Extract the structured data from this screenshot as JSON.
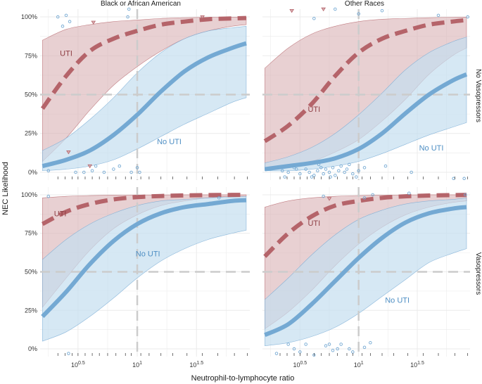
{
  "chart_data": {
    "type": "line",
    "xlabel": "Neutrophil-to-lymphocyte ratio",
    "ylabel": "NEC Likelihood",
    "x_scale": "log10",
    "xlim_log10": [
      0.18,
      1.95
    ],
    "x_ticks": [
      {
        "log10": 0.5,
        "base": "10",
        "exp": "0.5"
      },
      {
        "log10": 1.0,
        "base": "10",
        "exp": "1"
      },
      {
        "log10": 1.5,
        "base": "10",
        "exp": "1.5"
      }
    ],
    "ylim": [
      -0.05,
      1.05
    ],
    "y_ticks": [
      {
        "value": 0,
        "label": "0%"
      },
      {
        "value": 0.25,
        "label": "25%"
      },
      {
        "value": 0.5,
        "label": "50%"
      },
      {
        "value": 0.75,
        "label": "75%"
      },
      {
        "value": 1,
        "label": "100%"
      }
    ],
    "reference_lines": {
      "x_log10": 1.0,
      "y": 0.5
    },
    "column_strips": [
      "Black or African American",
      "Other Races"
    ],
    "row_strips": [
      "No Vasopressors",
      "Vasopressors"
    ],
    "colors": {
      "uti_line": "#b5646a",
      "uti_band": "#d9b0b4",
      "no_uti_line": "#74a9d3",
      "no_uti_band": "#c4def0",
      "ref_line": "#cccccc",
      "grid": "#ebebeb"
    },
    "panels": [
      {
        "id": "black-novaso",
        "column": "Black or African American",
        "row": "No Vasopressors",
        "x": [
          0.2,
          0.4,
          0.6,
          0.8,
          1.0,
          1.2,
          1.4,
          1.6,
          1.8,
          1.92
        ],
        "series": [
          {
            "name": "UTI",
            "key": "uti",
            "mean": [
              0.41,
              0.62,
              0.78,
              0.86,
              0.91,
              0.95,
              0.97,
              0.985,
              0.99,
              0.993
            ],
            "lower": [
              0.07,
              0.22,
              0.4,
              0.56,
              0.68,
              0.78,
              0.86,
              0.91,
              0.94,
              0.95
            ],
            "upper": [
              0.85,
              0.92,
              0.95,
              0.97,
              0.98,
              0.99,
              0.995,
              0.998,
              0.999,
              0.999
            ],
            "label_at": {
              "x": 0.4,
              "y": 0.75
            }
          },
          {
            "name": "No UTI",
            "key": "no_uti",
            "mean": [
              0.04,
              0.08,
              0.14,
              0.24,
              0.37,
              0.52,
              0.65,
              0.74,
              0.8,
              0.83
            ],
            "lower": [
              0.01,
              0.02,
              0.04,
              0.08,
              0.15,
              0.23,
              0.31,
              0.38,
              0.45,
              0.48
            ],
            "upper": [
              0.14,
              0.22,
              0.34,
              0.48,
              0.64,
              0.77,
              0.86,
              0.91,
              0.93,
              0.94
            ],
            "label_at": {
              "x": 1.27,
              "y": 0.18
            }
          }
        ],
        "points_uti": [
          [
            0.63,
            0.965
          ],
          [
            1.55,
            1.0
          ],
          [
            0.42,
            0.13
          ],
          [
            0.6,
            0.04
          ]
        ],
        "points_no_uti": [
          [
            0.4,
            1.01
          ],
          [
            0.43,
            0.97
          ],
          [
            0.33,
            1.0
          ],
          [
            0.93,
            1.05
          ],
          [
            0.92,
            1.0
          ],
          [
            0.37,
            0.94
          ],
          [
            0.55,
            0.0
          ],
          [
            0.62,
            0.01
          ],
          [
            0.65,
            0.04
          ],
          [
            0.72,
            0.0
          ],
          [
            0.8,
            0.02
          ],
          [
            0.95,
            0.0
          ],
          [
            1.0,
            0.03
          ],
          [
            1.02,
            0.0
          ],
          [
            0.25,
            0.01
          ],
          [
            0.48,
            0.0
          ],
          [
            0.85,
            0.04
          ]
        ]
      },
      {
        "id": "other-novaso",
        "column": "Other Races",
        "row": "No Vasopressors",
        "x": [
          0.2,
          0.4,
          0.6,
          0.8,
          1.0,
          1.2,
          1.4,
          1.6,
          1.8,
          1.92
        ],
        "series": [
          {
            "name": "UTI",
            "key": "uti",
            "mean": [
              0.2,
              0.3,
              0.44,
              0.62,
              0.77,
              0.86,
              0.91,
              0.95,
              0.97,
              0.98
            ],
            "lower": [
              0.02,
              0.04,
              0.07,
              0.13,
              0.21,
              0.33,
              0.47,
              0.63,
              0.75,
              0.8
            ],
            "upper": [
              0.67,
              0.8,
              0.89,
              0.94,
              0.97,
              0.985,
              0.99,
              0.995,
              0.998,
              0.999
            ],
            "label_at": {
              "x": 0.62,
              "y": 0.39
            }
          },
          {
            "name": "No UTI",
            "key": "no_uti",
            "mean": [
              0.02,
              0.04,
              0.06,
              0.09,
              0.15,
              0.25,
              0.38,
              0.5,
              0.59,
              0.63
            ],
            "lower": [
              0.01,
              0.01,
              0.02,
              0.04,
              0.07,
              0.12,
              0.18,
              0.24,
              0.29,
              0.32
            ],
            "upper": [
              0.06,
              0.1,
              0.16,
              0.25,
              0.37,
              0.51,
              0.66,
              0.77,
              0.84,
              0.87
            ],
            "label_at": {
              "x": 1.62,
              "y": 0.14
            }
          }
        ],
        "points_uti": [
          [
            0.43,
            1.04
          ],
          [
            0.7,
            1.05
          ]
        ],
        "points_no_uti": [
          [
            0.8,
            1.05
          ],
          [
            1.0,
            1.02
          ],
          [
            1.2,
            1.04
          ],
          [
            0.62,
            0.99
          ],
          [
            1.68,
            1.01
          ],
          [
            1.93,
            1.0
          ],
          [
            0.3,
            0.03
          ],
          [
            0.35,
            0.01
          ],
          [
            0.4,
            0.0
          ],
          [
            0.45,
            0.03
          ],
          [
            0.5,
            -0.01
          ],
          [
            0.55,
            0.02
          ],
          [
            0.58,
            0.0
          ],
          [
            0.62,
            -0.02
          ],
          [
            0.65,
            0.01
          ],
          [
            0.68,
            0.03
          ],
          [
            0.7,
            -0.01
          ],
          [
            0.72,
            0.02
          ],
          [
            0.75,
            0.0
          ],
          [
            0.78,
            0.03
          ],
          [
            0.8,
            -0.02
          ],
          [
            0.83,
            0.01
          ],
          [
            0.85,
            0.04
          ],
          [
            0.88,
            0.0
          ],
          [
            0.9,
            0.02
          ],
          [
            0.95,
            -0.01
          ],
          [
            1.0,
            0.01
          ],
          [
            1.05,
            0.03
          ],
          [
            0.52,
            0.05
          ],
          [
            0.6,
            -0.03
          ],
          [
            0.66,
            0.05
          ],
          [
            0.76,
            -0.03
          ],
          [
            0.92,
            0.05
          ],
          [
            0.98,
            -0.03
          ],
          [
            1.23,
            0.04
          ],
          [
            1.45,
            0.0
          ],
          [
            1.81,
            -0.04
          ],
          [
            1.9,
            -0.04
          ],
          [
            0.37,
            -0.03
          ],
          [
            0.47,
            0.02
          ]
        ]
      },
      {
        "id": "black-vaso",
        "column": "Black or African American",
        "row": "Vasopressors",
        "x": [
          0.2,
          0.4,
          0.6,
          0.8,
          1.0,
          1.2,
          1.4,
          1.6,
          1.8,
          1.92
        ],
        "series": [
          {
            "name": "UTI",
            "key": "uti",
            "mean": [
              0.81,
              0.89,
              0.94,
              0.97,
              0.985,
              0.992,
              0.996,
              0.998,
              0.999,
              0.999
            ],
            "lower": [
              0.27,
              0.46,
              0.64,
              0.78,
              0.87,
              0.93,
              0.96,
              0.98,
              0.99,
              0.99
            ],
            "upper": [
              0.98,
              0.99,
              0.995,
              0.998,
              0.999,
              0.999,
              1.0,
              1.0,
              1.0,
              1.0
            ],
            "label_at": {
              "x": 0.35,
              "y": 0.86
            }
          },
          {
            "name": "No UTI",
            "key": "no_uti",
            "mean": [
              0.21,
              0.37,
              0.55,
              0.7,
              0.81,
              0.88,
              0.92,
              0.94,
              0.96,
              0.965
            ],
            "lower": [
              0.05,
              0.11,
              0.21,
              0.33,
              0.46,
              0.57,
              0.65,
              0.71,
              0.75,
              0.77
            ],
            "upper": [
              0.58,
              0.71,
              0.81,
              0.88,
              0.93,
              0.96,
              0.97,
              0.98,
              0.985,
              0.99
            ],
            "label_at": {
              "x": 1.09,
              "y": 0.6
            }
          }
        ],
        "points_uti": [],
        "points_no_uti": [
          [
            0.25,
            0.99
          ],
          [
            1.69,
            0.98
          ],
          [
            0.42,
            -0.03
          ]
        ]
      },
      {
        "id": "other-vaso",
        "column": "Other Races",
        "row": "Vasopressors",
        "x": [
          0.2,
          0.4,
          0.6,
          0.8,
          1.0,
          1.2,
          1.4,
          1.6,
          1.8,
          1.92
        ],
        "series": [
          {
            "name": "UTI",
            "key": "uti",
            "mean": [
              0.6,
              0.75,
              0.86,
              0.93,
              0.96,
              0.98,
              0.99,
              0.995,
              0.998,
              0.999
            ],
            "lower": [
              0.13,
              0.24,
              0.38,
              0.54,
              0.68,
              0.79,
              0.87,
              0.92,
              0.95,
              0.96
            ],
            "upper": [
              0.92,
              0.96,
              0.98,
              0.99,
              0.995,
              0.998,
              0.999,
              1.0,
              1.0,
              1.0
            ],
            "label_at": {
              "x": 0.62,
              "y": 0.8
            }
          },
          {
            "name": "No UTI",
            "key": "no_uti",
            "mean": [
              0.09,
              0.16,
              0.29,
              0.44,
              0.59,
              0.72,
              0.82,
              0.88,
              0.91,
              0.92
            ],
            "lower": [
              0.02,
              0.04,
              0.08,
              0.14,
              0.23,
              0.34,
              0.45,
              0.56,
              0.62,
              0.65
            ],
            "upper": [
              0.32,
              0.46,
              0.61,
              0.74,
              0.84,
              0.9,
              0.94,
              0.96,
              0.97,
              0.98
            ],
            "label_at": {
              "x": 1.33,
              "y": 0.3
            }
          }
        ],
        "points_uti": [
          [
            0.75,
            0.975
          ]
        ],
        "points_no_uti": [
          [
            0.7,
            0.99
          ],
          [
            1.05,
            0.98
          ],
          [
            1.12,
            1.0
          ],
          [
            1.43,
            1.01
          ],
          [
            1.91,
            1.0
          ],
          [
            0.4,
            0.03
          ],
          [
            0.45,
            0.0
          ],
          [
            0.5,
            -0.02
          ],
          [
            0.55,
            0.03
          ],
          [
            0.72,
            0.02
          ],
          [
            0.75,
            0.03
          ],
          [
            0.78,
            -0.01
          ],
          [
            0.82,
            0.0
          ],
          [
            0.85,
            0.03
          ],
          [
            0.92,
            0.0
          ],
          [
            0.95,
            -0.02
          ],
          [
            1.05,
            0.01
          ],
          [
            1.1,
            0.04
          ],
          [
            0.3,
            -0.03
          ],
          [
            0.62,
            -0.04
          ]
        ]
      }
    ]
  }
}
